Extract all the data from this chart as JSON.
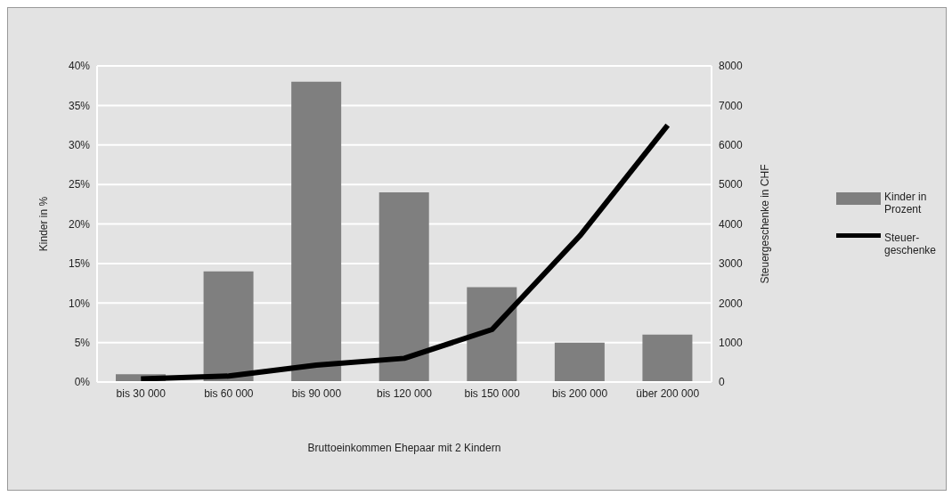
{
  "chart_data": {
    "type": "bar",
    "xlabel": "Bruttoeinkommen Ehepaar mit 2 Kindern",
    "ylabel": "Kinder in %",
    "y2label": "Steuergeschenke in CHF",
    "categories": [
      "bis 30 000",
      "bis 60 000",
      "bis 90 000",
      "bis 120 000",
      "bis 150 000",
      "bis 200 000",
      "über 200 000"
    ],
    "series": [
      {
        "name": "Kinder in Prozent",
        "color": "#7f7f7f",
        "values": [
          1,
          14,
          38,
          24,
          12,
          5,
          6
        ]
      },
      {
        "name": "Steuer-geschenke",
        "type": "line",
        "axis": "y2",
        "color": "#000000",
        "values": [
          80,
          150,
          430,
          600,
          1330,
          3700,
          6500
        ]
      }
    ],
    "ylim": [
      0,
      40
    ],
    "yticks": [
      {
        "value": 0,
        "label": "0%"
      },
      {
        "value": 5,
        "label": "5%"
      },
      {
        "value": 10,
        "label": "10%"
      },
      {
        "value": 15,
        "label": "15%"
      },
      {
        "value": 20,
        "label": "20%"
      },
      {
        "value": 25,
        "label": "25%"
      },
      {
        "value": 30,
        "label": "30%"
      },
      {
        "value": 35,
        "label": "35%"
      },
      {
        "value": 40,
        "label": "40%"
      }
    ],
    "y2lim": [
      0,
      8000
    ],
    "y2ticks": [
      0,
      1000,
      2000,
      3000,
      4000,
      5000,
      6000,
      7000,
      8000
    ],
    "grid": "y",
    "legend": "right",
    "marker": "none"
  }
}
